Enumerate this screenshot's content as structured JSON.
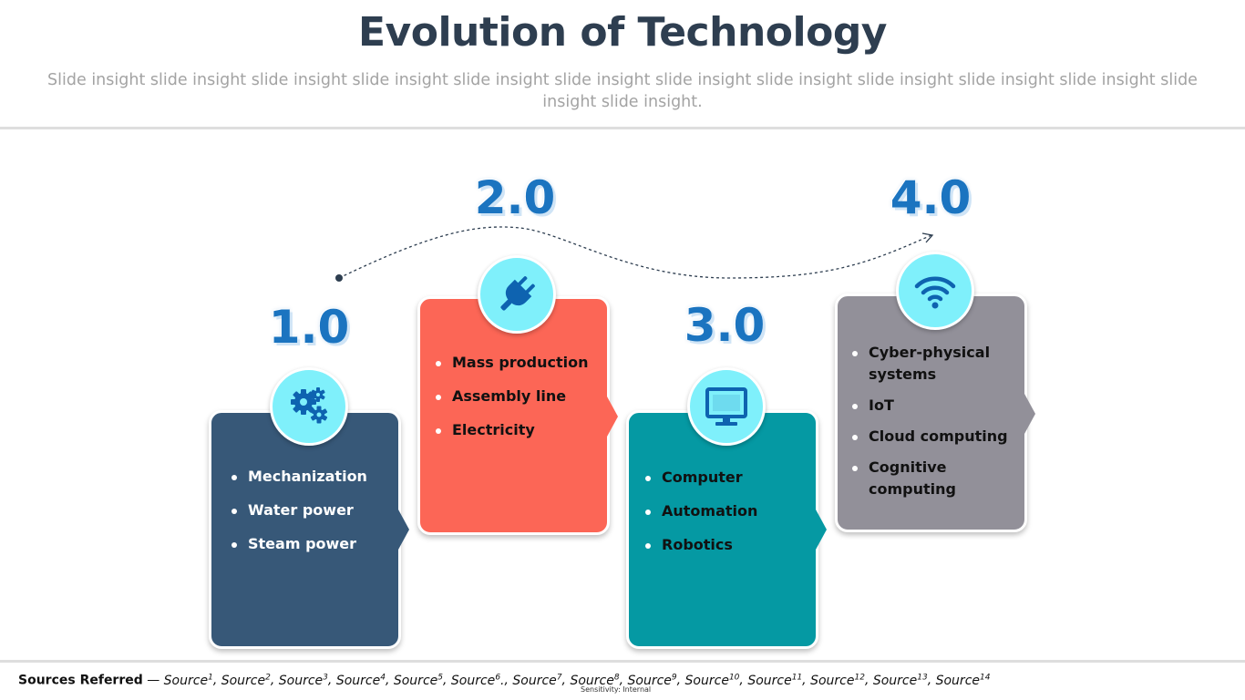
{
  "slide": {
    "title": "Evolution of Technology",
    "subtitle": "Slide insight slide insight slide insight slide insight slide insight slide insight slide insight slide insight slide insight slide insight slide insight slide insight slide insight."
  },
  "stages": [
    {
      "number": "1.0",
      "icon": "gears-icon",
      "color": "#375878",
      "items": [
        "Mechanization",
        "Water power",
        "Steam power"
      ]
    },
    {
      "number": "2.0",
      "icon": "plug-icon",
      "color": "#fc6656",
      "items": [
        "Mass production",
        "Assembly line",
        "Electricity"
      ]
    },
    {
      "number": "3.0",
      "icon": "monitor-icon",
      "color": "#0599a3",
      "items": [
        "Computer",
        "Automation",
        "Robotics"
      ]
    },
    {
      "number": "4.0",
      "icon": "wifi-icon",
      "color": "#929099",
      "items": [
        "Cyber-physical systems",
        "IoT",
        "Cloud computing",
        "Cognitive computing"
      ]
    }
  ],
  "colors": {
    "icon_circle": "#7ff0fb",
    "icon_glyph": "#0e63b0",
    "stage_number": "#1b74c0",
    "title": "#2e3e50"
  },
  "footer": {
    "sources_label": "Sources Referred",
    "sources_dash": " — ",
    "sources": [
      "Source1",
      "Source2",
      "Source3",
      "Source4",
      "Source5",
      "Source6.",
      "Source7",
      "Source8",
      "Source9",
      "Source10",
      "Source11",
      "Source12",
      "Source13",
      "Source14"
    ],
    "sensitivity": "Sensitivity: Internal"
  }
}
